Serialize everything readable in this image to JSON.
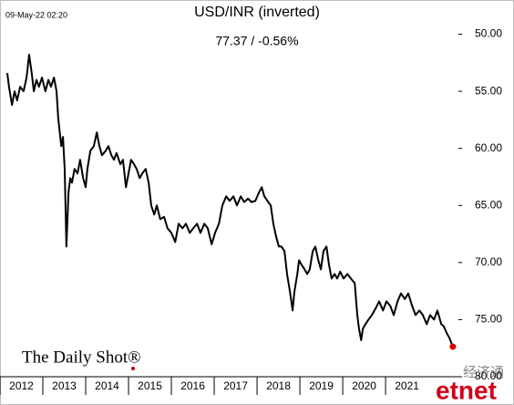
{
  "chart_data": {
    "type": "line",
    "timestamp": "09-May-22 02:20",
    "title": "USD/INR (inverted)",
    "subtitle": "77.37  /  -0.56%",
    "branding": "The Daily Shot®",
    "watermark": "经济通",
    "watermark_logo": "etnet",
    "y_inverted": true,
    "color": "#000000",
    "last_point_color": "#e00000",
    "xlim": [
      2012,
      2022.7
    ],
    "xticks": [
      2012,
      2013,
      2014,
      2015,
      2016,
      2017,
      2018,
      2019,
      2020,
      2021
    ],
    "ylim": [
      50,
      80
    ],
    "yticks": [
      {
        "value": 50,
        "label": "50.00"
      },
      {
        "value": 55,
        "label": "55.00"
      },
      {
        "value": 60,
        "label": "60.00"
      },
      {
        "value": 65,
        "label": "65.00"
      },
      {
        "value": 70,
        "label": "70.00"
      },
      {
        "value": 75,
        "label": "75.00"
      },
      {
        "value": 80,
        "label": "80.00"
      }
    ],
    "x": [
      2012.17,
      2012.21,
      2012.28,
      2012.34,
      2012.4,
      2012.47,
      2012.55,
      2012.62,
      2012.68,
      2012.74,
      2012.79,
      2012.85,
      2012.91,
      2012.98,
      2013.06,
      2013.13,
      2013.19,
      2013.26,
      2013.32,
      2013.36,
      2013.43,
      2013.47,
      2013.51,
      2013.55,
      2013.6,
      2013.64,
      2013.68,
      2013.74,
      2013.81,
      2013.87,
      2013.94,
      2014.0,
      2014.04,
      2014.11,
      2014.19,
      2014.26,
      2014.32,
      2014.38,
      2014.47,
      2014.53,
      2014.6,
      2014.66,
      2014.72,
      2014.81,
      2014.87,
      2014.94,
      2015.0,
      2015.06,
      2015.13,
      2015.19,
      2015.26,
      2015.32,
      2015.4,
      2015.47,
      2015.53,
      2015.6,
      2015.66,
      2015.74,
      2015.83,
      2015.91,
      2016.0,
      2016.09,
      2016.17,
      2016.26,
      2016.34,
      2016.43,
      2016.51,
      2016.6,
      2016.68,
      2016.77,
      2016.85,
      2016.94,
      2017.02,
      2017.11,
      2017.19,
      2017.28,
      2017.36,
      2017.45,
      2017.53,
      2017.62,
      2017.7,
      2017.79,
      2017.87,
      2017.96,
      2018.04,
      2018.11,
      2018.17,
      2018.26,
      2018.32,
      2018.38,
      2018.45,
      2018.51,
      2018.57,
      2018.64,
      2018.7,
      2018.77,
      2018.83,
      2018.87,
      2018.94,
      2018.98,
      2019.04,
      2019.11,
      2019.17,
      2019.23,
      2019.3,
      2019.36,
      2019.43,
      2019.49,
      2019.55,
      2019.62,
      2019.68,
      2019.74,
      2019.81,
      2019.87,
      2019.94,
      2020.02,
      2020.11,
      2020.19,
      2020.28,
      2020.34,
      2020.38,
      2020.43,
      2020.47,
      2020.53,
      2020.6,
      2020.68,
      2020.77,
      2020.85,
      2020.94,
      2021.02,
      2021.11,
      2021.19,
      2021.28,
      2021.36,
      2021.45,
      2021.53,
      2021.62,
      2021.7,
      2021.79,
      2021.87,
      2021.96,
      2022.04,
      2022.13,
      2022.21,
      2022.3,
      2022.36,
      2022.43,
      2022.49,
      2022.57
    ],
    "values": [
      53.4,
      54.6,
      56.2,
      55.0,
      55.8,
      54.6,
      55.0,
      53.8,
      51.8,
      53.4,
      55.0,
      54.0,
      54.6,
      53.8,
      55.0,
      54.0,
      54.6,
      53.8,
      55.0,
      57.4,
      59.8,
      59.0,
      61.8,
      68.6,
      63.8,
      62.6,
      63.0,
      61.8,
      62.2,
      61.0,
      62.6,
      63.4,
      61.8,
      60.2,
      59.8,
      58.6,
      59.8,
      60.6,
      60.2,
      59.8,
      60.6,
      61.0,
      60.4,
      61.4,
      61.0,
      63.4,
      62.2,
      61.0,
      61.4,
      61.8,
      62.6,
      62.2,
      61.8,
      63.0,
      65.0,
      65.8,
      65.0,
      66.2,
      66.0,
      67.0,
      67.4,
      68.2,
      66.6,
      67.0,
      66.6,
      67.4,
      67.0,
      66.6,
      67.4,
      66.6,
      67.0,
      68.4,
      67.4,
      66.6,
      65.0,
      64.2,
      64.6,
      64.2,
      65.0,
      64.2,
      64.7,
      64.4,
      64.7,
      64.6,
      63.9,
      63.4,
      64.2,
      64.7,
      65.0,
      66.6,
      67.8,
      68.6,
      68.6,
      69.0,
      71.0,
      72.6,
      74.2,
      72.6,
      71.0,
      69.8,
      70.2,
      70.6,
      71.0,
      70.6,
      69.0,
      68.6,
      69.8,
      70.6,
      69.0,
      68.6,
      70.2,
      71.4,
      71.0,
      71.4,
      70.8,
      71.4,
      71.0,
      71.4,
      71.8,
      74.6,
      75.8,
      76.8,
      75.8,
      75.4,
      75.0,
      74.6,
      74.0,
      73.4,
      74.2,
      73.4,
      73.8,
      74.6,
      73.4,
      72.7,
      73.2,
      72.7,
      73.8,
      74.6,
      74.2,
      74.6,
      75.4,
      74.6,
      75.0,
      74.2,
      75.4,
      75.6,
      76.2,
      76.6,
      77.37
    ]
  }
}
